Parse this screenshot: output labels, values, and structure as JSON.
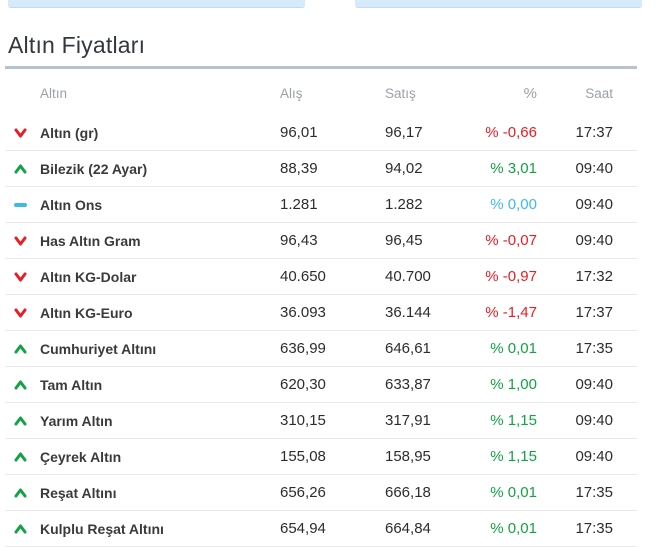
{
  "page": {
    "title": "Altın Fiyatları"
  },
  "table": {
    "headers": {
      "name": "Altın",
      "buy": "Alış",
      "sell": "Satış",
      "pct": "%",
      "time": "Saat"
    },
    "rows": [
      {
        "name": "Altın (gr)",
        "buy": "96,01",
        "sell": "96,17",
        "pct": "% -0,66",
        "time": "17:37",
        "trend": "down"
      },
      {
        "name": "Bilezik (22 Ayar)",
        "buy": "88,39",
        "sell": "94,02",
        "pct": "% 3,01",
        "time": "09:40",
        "trend": "up"
      },
      {
        "name": "Altın Ons",
        "buy": "1.281",
        "sell": "1.282",
        "pct": "% 0,00",
        "time": "09:40",
        "trend": "flat"
      },
      {
        "name": "Has Altın Gram",
        "buy": "96,43",
        "sell": "96,45",
        "pct": "% -0,07",
        "time": "09:40",
        "trend": "down"
      },
      {
        "name": "Altın KG-Dolar",
        "buy": "40.650",
        "sell": "40.700",
        "pct": "% -0,97",
        "time": "17:32",
        "trend": "down"
      },
      {
        "name": "Altın KG-Euro",
        "buy": "36.093",
        "sell": "36.144",
        "pct": "% -1,47",
        "time": "17:37",
        "trend": "down"
      },
      {
        "name": "Cumhuriyet Altını",
        "buy": "636,99",
        "sell": "646,61",
        "pct": "% 0,01",
        "time": "17:35",
        "trend": "up"
      },
      {
        "name": "Tam Altın",
        "buy": "620,30",
        "sell": "633,87",
        "pct": "% 1,00",
        "time": "09:40",
        "trend": "up"
      },
      {
        "name": "Yarım Altın",
        "buy": "310,15",
        "sell": "317,91",
        "pct": "% 1,15",
        "time": "09:40",
        "trend": "up"
      },
      {
        "name": "Çeyrek Altın",
        "buy": "155,08",
        "sell": "158,95",
        "pct": "% 1,15",
        "time": "09:40",
        "trend": "up"
      },
      {
        "name": "Reşat Altını",
        "buy": "656,26",
        "sell": "666,18",
        "pct": "% 0,01",
        "time": "17:35",
        "trend": "up"
      },
      {
        "name": "Kulplu Reşat Altını",
        "buy": "654,94",
        "sell": "664,84",
        "pct": "% 0,01",
        "time": "17:35",
        "trend": "up"
      }
    ]
  },
  "colors": {
    "down": "#ea1c24",
    "up": "#12a344",
    "flat": "#3fb9e8",
    "accent_bar": "#d7eafa"
  }
}
